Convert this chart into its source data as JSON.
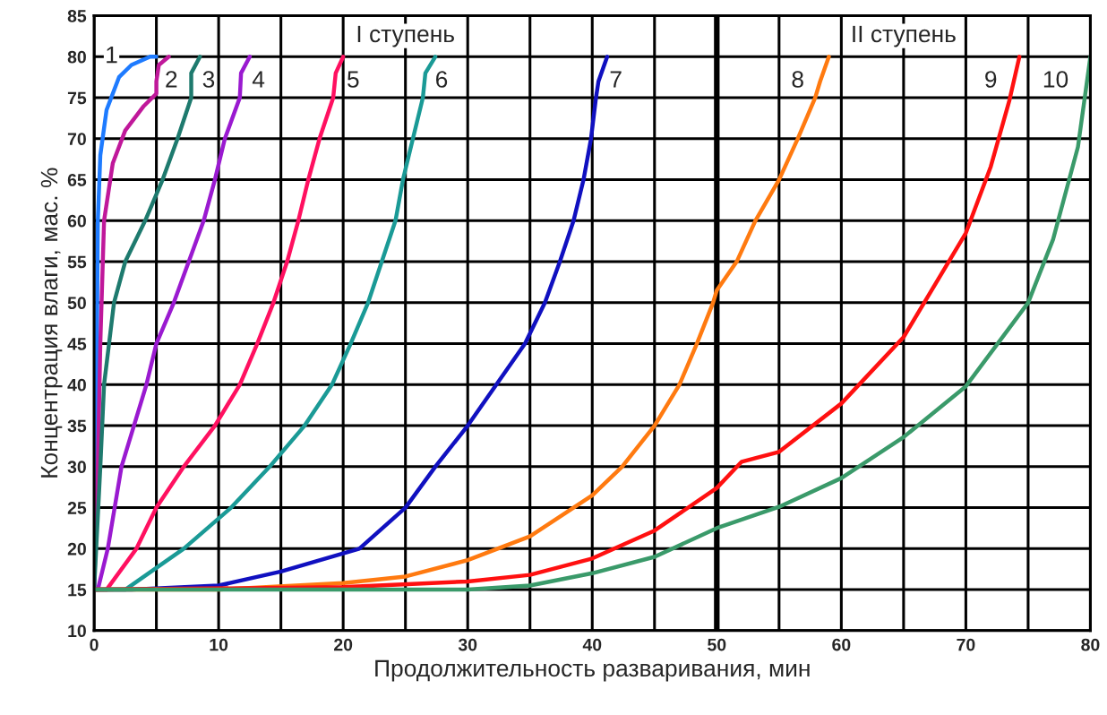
{
  "chart_data": {
    "type": "line",
    "xlabel": "Продолжительность разваривания, мин",
    "ylabel": "Концентрация влаги, мас. %",
    "xlim": [
      0,
      80
    ],
    "ylim": [
      10,
      85
    ],
    "xticks": [
      0,
      {
        "value": 5,
        "label": null
      },
      10,
      {
        "value": 15,
        "label": null
      },
      20,
      {
        "value": 25,
        "label": null
      },
      30,
      {
        "value": 35,
        "label": null
      },
      40,
      {
        "value": 45,
        "label": null
      },
      50,
      {
        "value": 55,
        "label": null
      },
      60,
      {
        "value": 65,
        "label": null
      },
      70,
      {
        "value": 75,
        "label": null
      },
      80
    ],
    "yticks": [
      10,
      15,
      20,
      25,
      30,
      35,
      40,
      45,
      50,
      55,
      60,
      65,
      70,
      75,
      80,
      85
    ],
    "grid": true,
    "legend": false,
    "marker": "none",
    "line_style": "solid",
    "ref_lines": [
      {
        "axis": "x",
        "value": 50,
        "label": null,
        "color": "#000000"
      }
    ],
    "series": [
      {
        "color": "#1e7bff",
        "x": [
          0,
          0.2,
          0.3,
          0.5,
          1,
          2,
          3,
          4.5,
          5
        ],
        "values": [
          15,
          40,
          60,
          68,
          73.5,
          77.5,
          79,
          80,
          80
        ]
      },
      {
        "color": "#c0189a",
        "x": [
          0,
          0.3,
          0.5,
          0.8,
          1.5,
          2.5,
          4,
          5,
          5,
          5.2,
          6
        ],
        "values": [
          15,
          30,
          45,
          60,
          67,
          71,
          74,
          75.5,
          77,
          79,
          80
        ]
      },
      {
        "color": "#1e7a6e",
        "x": [
          0,
          0.5,
          0.8,
          1.6,
          2.5,
          4.1,
          5.5,
          6.7,
          7.8,
          7.8,
          8.5
        ],
        "values": [
          15,
          30,
          40,
          50,
          55,
          60,
          65,
          70,
          75,
          78,
          80
        ]
      },
      {
        "color": "#9a1ad0",
        "x": [
          0,
          0.3,
          1.1,
          2.2,
          4.2,
          5,
          6.4,
          8.8,
          9.7,
          10.5,
          11.7,
          11.8,
          12.5
        ],
        "values": [
          15,
          15,
          20,
          30,
          40,
          45,
          50,
          60,
          65,
          70,
          75,
          78,
          80
        ]
      },
      {
        "color": "#ff1060",
        "x": [
          0,
          1,
          3.4,
          5,
          7.2,
          9.7,
          11.7,
          13.1,
          14.4,
          15.5,
          16.4,
          17.2,
          18.1,
          19.2,
          19.4,
          20
        ],
        "values": [
          15,
          15,
          20,
          25,
          30,
          35,
          40,
          45,
          50,
          55,
          60,
          65,
          70,
          75,
          78,
          80
        ]
      },
      {
        "color": "#1a9a96",
        "x": [
          0,
          2.5,
          7.2,
          11,
          14.1,
          16.9,
          19.1,
          20.6,
          22,
          23.1,
          24.2,
          24.8,
          25.6,
          26.4,
          26.6,
          27.4
        ],
        "values": [
          15,
          15,
          20,
          25,
          30,
          35,
          40,
          45,
          50,
          55,
          60,
          65,
          70,
          75,
          78,
          80
        ]
      },
      {
        "color": "#1010c0",
        "x": [
          0,
          3,
          10,
          15,
          21.3,
          25,
          27.4,
          30,
          32.3,
          34.6,
          36.2,
          37.4,
          38.5,
          39.3,
          39.9,
          40.3,
          40.5,
          41.2
        ],
        "values": [
          15,
          15,
          15.5,
          17.2,
          20,
          25,
          30,
          35,
          40,
          45,
          50,
          55,
          60,
          65,
          70,
          75,
          77,
          80
        ]
      },
      {
        "color": "#ff7a10",
        "x": [
          0,
          10,
          20,
          25,
          30,
          35,
          40,
          42.4,
          45,
          47,
          48.4,
          49.7,
          50,
          51.6,
          53.1,
          55,
          56.5,
          57.9,
          58.3,
          59
        ],
        "values": [
          15,
          15,
          15.8,
          16.6,
          18.6,
          21.5,
          26.5,
          30,
          35,
          40,
          45,
          50,
          51.5,
          55,
          60,
          65,
          70,
          75,
          77,
          80
        ]
      },
      {
        "color": "#ff1010",
        "x": [
          0,
          20,
          30,
          35,
          40,
          45,
          50,
          52,
          55,
          60,
          65,
          70,
          72,
          73.5,
          74,
          74.3
        ],
        "values": [
          15,
          15.3,
          16,
          16.8,
          18.8,
          22.2,
          27.4,
          30.6,
          31.8,
          37.7,
          45.8,
          58.5,
          66.6,
          74.7,
          78,
          80
        ]
      },
      {
        "color": "#3a9a6a",
        "x": [
          0,
          30,
          35,
          40,
          45,
          50,
          55,
          60,
          65,
          70,
          75,
          77,
          79,
          80
        ],
        "values": [
          15,
          15,
          15.5,
          17,
          19,
          22.5,
          25.1,
          28.6,
          33.6,
          39.8,
          50,
          57.7,
          69,
          80
        ]
      }
    ],
    "annotations": [
      {
        "text": "1",
        "x": 1.4,
        "y": 80
      },
      {
        "text": "2",
        "x": 6.2,
        "y": 77
      },
      {
        "text": "3",
        "x": 9.2,
        "y": 77
      },
      {
        "text": "4",
        "x": 13.2,
        "y": 77
      },
      {
        "text": "5",
        "x": 20.8,
        "y": 77
      },
      {
        "text": "6",
        "x": 27.9,
        "y": 77
      },
      {
        "text": "7",
        "x": 41.9,
        "y": 77
      },
      {
        "text": "8",
        "x": 56.5,
        "y": 77
      },
      {
        "text": "9",
        "x": 72,
        "y": 77
      },
      {
        "text": "10",
        "x": 77.2,
        "y": 77
      },
      "I ступень",
      "II ступень"
    ]
  }
}
